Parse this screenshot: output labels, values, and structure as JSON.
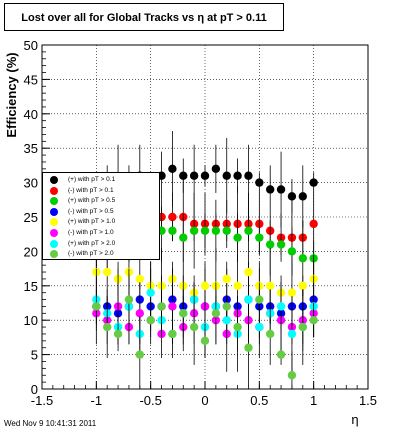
{
  "title": "Lost over all for Global Tracks vs  η at pT > 0.11",
  "footer": "Wed Nov  9 10:41:31 2011",
  "chart_data": {
    "type": "scatter",
    "xlabel": "η",
    "ylabel": "Efficiency (%)",
    "xlim": [
      -1.5,
      1.5
    ],
    "ylim": [
      0,
      50
    ],
    "x_ticks": [
      "-1.5",
      "-1",
      "-0.5",
      "0",
      "0.5",
      "1",
      "1.5"
    ],
    "y_ticks": [
      "0",
      "5",
      "10",
      "15",
      "20",
      "25",
      "30",
      "35",
      "40",
      "45",
      "50"
    ],
    "grid": true,
    "legend_position": "left",
    "series": [
      {
        "name": "(+) with pT > 0.1",
        "color": "#000000",
        "x": [
          -1.0,
          -0.9,
          -0.8,
          -0.7,
          -0.6,
          -0.5,
          -0.4,
          -0.3,
          -0.2,
          -0.1,
          0.0,
          0.1,
          0.2,
          0.3,
          0.4,
          0.5,
          0.6,
          0.7,
          0.8,
          0.9,
          1.0
        ],
        "y": [
          29,
          29,
          30,
          30,
          31,
          30,
          31,
          32,
          31,
          31,
          31,
          32,
          31,
          31,
          31,
          30,
          29,
          29,
          28,
          28,
          30
        ]
      },
      {
        "name": "(-) with pT > 0.1",
        "color": "#ff0000",
        "x": [
          -1.0,
          -0.9,
          -0.8,
          -0.7,
          -0.6,
          -0.5,
          -0.4,
          -0.3,
          -0.2,
          -0.1,
          0.0,
          0.1,
          0.2,
          0.3,
          0.4,
          0.5,
          0.6,
          0.7,
          0.8,
          0.9,
          1.0
        ],
        "y": [
          22,
          23,
          23,
          24,
          24,
          24,
          25,
          25,
          25,
          24,
          24,
          24,
          24,
          24,
          24,
          24,
          23,
          22,
          22,
          22,
          24
        ]
      },
      {
        "name": "(+) with pT > 0.5",
        "color": "#00cc00",
        "x": [
          -1.0,
          -0.9,
          -0.8,
          -0.7,
          -0.6,
          -0.5,
          -0.4,
          -0.3,
          -0.2,
          -0.1,
          0.0,
          0.1,
          0.2,
          0.3,
          0.4,
          0.5,
          0.6,
          0.7,
          0.8,
          0.9,
          1.0
        ],
        "y": [
          20,
          21,
          22,
          22,
          23,
          22,
          23,
          23,
          22,
          23,
          23,
          23,
          23,
          22,
          23,
          22,
          21,
          21,
          20,
          19,
          19
        ]
      },
      {
        "name": "(-) with pT > 0.5",
        "color": "#0000ff",
        "x": [
          -1.0,
          -0.9,
          -0.8,
          -0.7,
          -0.6,
          -0.5,
          -0.4,
          -0.3,
          -0.2,
          -0.1,
          0.0,
          0.1,
          0.2,
          0.3,
          0.4,
          0.5,
          0.6,
          0.7,
          0.8,
          0.9,
          1.0
        ],
        "y": [
          12,
          12,
          11,
          12,
          13,
          12,
          12,
          13,
          12,
          13,
          12,
          12,
          13,
          12,
          13,
          12,
          12,
          11,
          12,
          12,
          13
        ]
      },
      {
        "name": "(+) with pT > 1.0",
        "color": "#ffff00",
        "x": [
          -1.0,
          -0.9,
          -0.8,
          -0.7,
          -0.6,
          -0.5,
          -0.4,
          -0.3,
          -0.2,
          -0.1,
          0.0,
          0.1,
          0.2,
          0.3,
          0.4,
          0.5,
          0.6,
          0.7,
          0.8,
          0.9,
          1.0
        ],
        "y": [
          17,
          17,
          16,
          17,
          16,
          15,
          15,
          16,
          15,
          14,
          15,
          15,
          16,
          15,
          17,
          15,
          15,
          14,
          14,
          15,
          16
        ]
      },
      {
        "name": "(-) with pT > 1.0",
        "color": "#ff00ff",
        "x": [
          -1.0,
          -0.9,
          -0.8,
          -0.7,
          -0.6,
          -0.5,
          -0.4,
          -0.3,
          -0.2,
          -0.1,
          0.0,
          0.1,
          0.2,
          0.3,
          0.4,
          0.5,
          0.6,
          0.7,
          0.8,
          0.9,
          1.0
        ],
        "y": [
          11,
          10,
          12,
          9,
          11,
          10,
          8,
          12,
          9,
          11,
          12,
          10,
          8,
          11,
          10,
          9,
          11,
          10,
          9,
          10,
          11
        ]
      },
      {
        "name": "(+) with pT > 2.0",
        "color": "#00ffff",
        "x": [
          -1.0,
          -0.9,
          -0.8,
          -0.7,
          -0.6,
          -0.5,
          -0.4,
          -0.3,
          -0.2,
          -0.1,
          0.0,
          0.1,
          0.2,
          0.3,
          0.4,
          0.5,
          0.6,
          0.7,
          0.8,
          0.9,
          1.0
        ],
        "y": [
          13,
          11,
          9,
          12,
          8,
          14,
          10,
          8,
          11,
          13,
          9,
          12,
          10,
          8,
          13,
          9,
          11,
          12,
          8,
          9,
          12
        ]
      },
      {
        "name": "(-) with pT > 2.0",
        "color": "#66cc44",
        "x": [
          -1.0,
          -0.9,
          -0.8,
          -0.7,
          -0.6,
          -0.5,
          -0.4,
          -0.3,
          -0.2,
          -0.1,
          0.0,
          0.1,
          0.2,
          0.3,
          0.4,
          0.5,
          0.6,
          0.7,
          0.8,
          0.9,
          1.0
        ],
        "y": [
          12,
          9,
          8,
          13,
          5,
          10,
          12,
          8,
          11,
          9,
          7,
          11,
          12,
          9,
          6,
          13,
          8,
          5,
          2,
          9,
          10
        ]
      }
    ]
  }
}
